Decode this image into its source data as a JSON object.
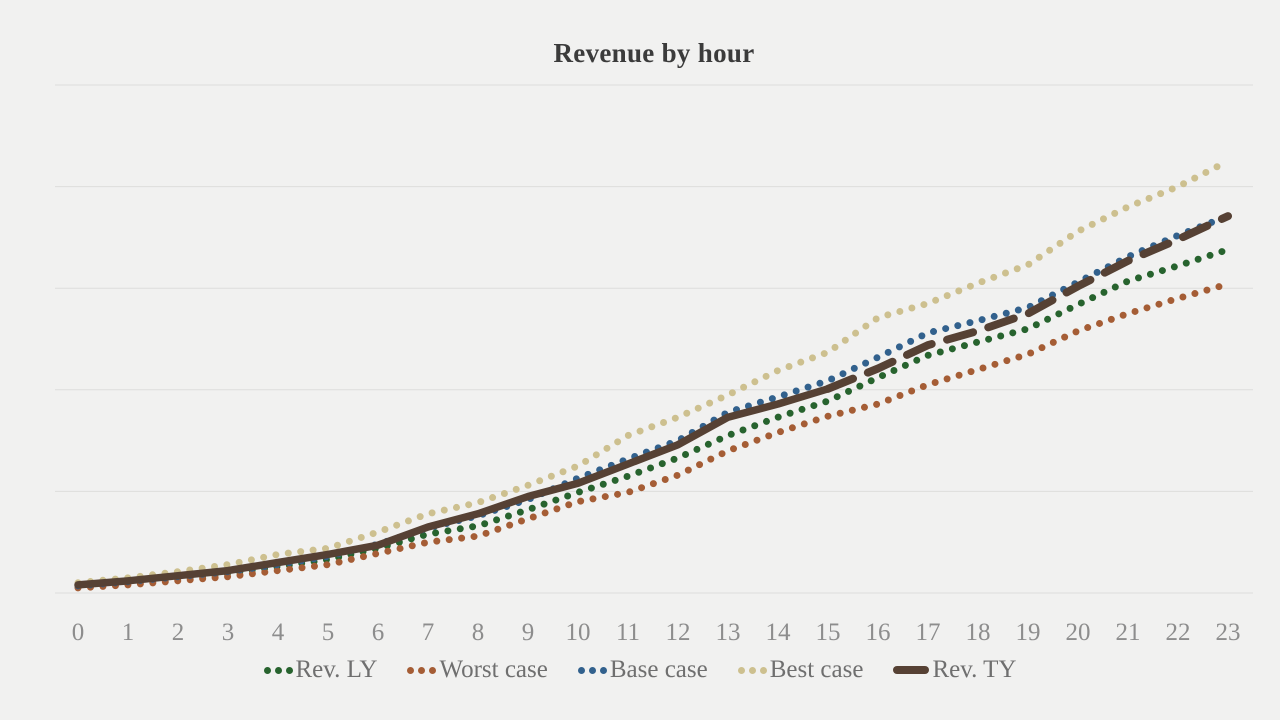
{
  "title": "Revenue by hour",
  "colors": {
    "background": "#f1f1f0",
    "gridline": "#dddddc",
    "title_text": "#3b3b3b",
    "axis_tick_text": "#8d8d8d",
    "legend_text": "#6f6f6f",
    "rev_ly_green": "#27632e",
    "worst_case_rust": "#a55d35",
    "base_case_blue": "#32618d",
    "best_case_khaki": "#cdc08f",
    "rev_ty_brown": "#564134"
  },
  "chart_data": {
    "type": "line",
    "title": "Revenue by hour",
    "x": [
      0,
      1,
      2,
      3,
      4,
      5,
      6,
      7,
      8,
      9,
      10,
      11,
      12,
      13,
      14,
      15,
      16,
      17,
      18,
      19,
      20,
      21,
      22,
      23
    ],
    "xlabel": "",
    "ylabel": "",
    "y_axis_labels_visible": false,
    "ylim": [
      0,
      5
    ],
    "y_gridline_spacing": 1,
    "grid": "horizontal gridlines only, 6 lines including baseline",
    "legend_position": "bottom center",
    "note_on_values": "y-axis is unlabeled; values estimated in gridline units (1.0 = one gridline spacing above baseline)",
    "series": [
      {
        "name": "Rev. LY",
        "style": "dotted",
        "color": "#27632e",
        "values": [
          0.06,
          0.1,
          0.14,
          0.19,
          0.26,
          0.33,
          0.44,
          0.58,
          0.66,
          0.82,
          0.99,
          1.15,
          1.33,
          1.55,
          1.73,
          1.89,
          2.12,
          2.34,
          2.47,
          2.6,
          2.84,
          3.07,
          3.22,
          3.38
        ]
      },
      {
        "name": "Worst case",
        "style": "dotted",
        "color": "#a55d35",
        "values": [
          0.05,
          0.08,
          0.12,
          0.16,
          0.22,
          0.28,
          0.39,
          0.5,
          0.56,
          0.73,
          0.9,
          0.99,
          1.16,
          1.4,
          1.58,
          1.74,
          1.86,
          2.05,
          2.2,
          2.35,
          2.58,
          2.75,
          2.9,
          3.04
        ]
      },
      {
        "name": "Base case",
        "style": "dotted",
        "color": "#32618d",
        "values": [
          0.07,
          0.11,
          0.16,
          0.21,
          0.28,
          0.36,
          0.48,
          0.64,
          0.76,
          0.92,
          1.13,
          1.32,
          1.5,
          1.78,
          1.93,
          2.09,
          2.32,
          2.56,
          2.68,
          2.81,
          3.06,
          3.31,
          3.52,
          3.71
        ]
      },
      {
        "name": "Best case",
        "style": "dotted",
        "color": "#cdc08f",
        "values": [
          0.1,
          0.15,
          0.21,
          0.28,
          0.38,
          0.44,
          0.6,
          0.78,
          0.89,
          1.06,
          1.25,
          1.55,
          1.73,
          1.95,
          2.19,
          2.37,
          2.71,
          2.85,
          3.05,
          3.23,
          3.56,
          3.8,
          4.0,
          4.25
        ]
      },
      {
        "name": "Rev. TY",
        "style": "solid_then_dashed",
        "solid_until_index": 15,
        "color": "#564134",
        "values": [
          0.08,
          0.12,
          0.17,
          0.22,
          0.3,
          0.38,
          0.47,
          0.65,
          0.78,
          0.95,
          1.08,
          1.27,
          1.46,
          1.73,
          1.86,
          2.01,
          2.21,
          2.44,
          2.58,
          2.75,
          3.02,
          3.27,
          3.48,
          3.71
        ]
      }
    ]
  }
}
